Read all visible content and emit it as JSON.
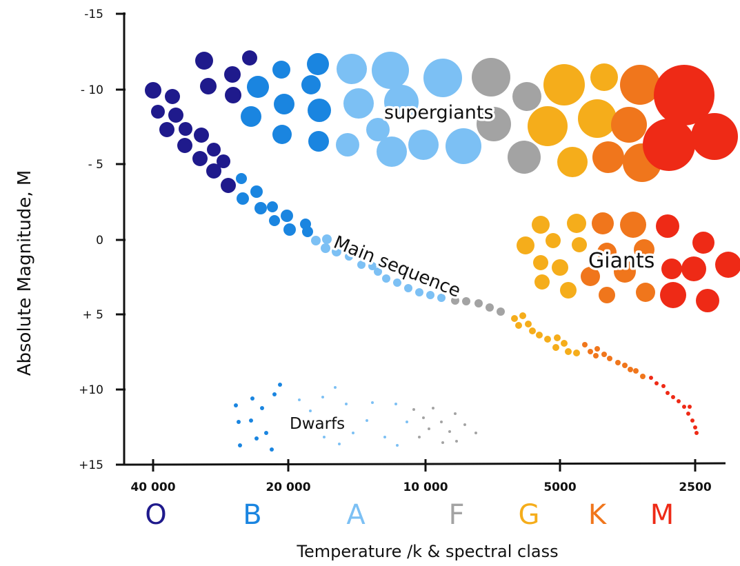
{
  "chart_data": {
    "type": "scatter",
    "title": "",
    "xlabel": "Temperature /k  & spectral class",
    "ylabel": "Absolute Magnitude, M",
    "x_ticks": [
      "40 000",
      "20 000",
      "10 000",
      "5000",
      "2500"
    ],
    "y_ticks": [
      "-15",
      "- 10",
      "- 5",
      "0",
      "+ 5",
      "+10",
      "+15"
    ],
    "y_range": [
      -15,
      15
    ],
    "y_inverted": true,
    "spectral_classes": [
      {
        "letter": "O",
        "color": "#1f1a8c"
      },
      {
        "letter": "B",
        "color": "#1a85e0"
      },
      {
        "letter": "A",
        "color": "#7cc0f4"
      },
      {
        "letter": "F",
        "color": "#a3a3a3"
      },
      {
        "letter": "G",
        "color": "#f5ad1b"
      },
      {
        "letter": "K",
        "color": "#f0761c"
      },
      {
        "letter": "M",
        "color": "#ee2a16"
      }
    ],
    "regions": [
      {
        "name": "Supergiants",
        "label": "supergiants",
        "magnitude_range": [
          -12,
          -5
        ]
      },
      {
        "name": "Giants",
        "label": "Giants",
        "magnitude_range": [
          -1,
          4
        ]
      },
      {
        "name": "Main sequence",
        "label": "Main sequence",
        "magnitude_range": [
          -10,
          13
        ]
      },
      {
        "name": "Dwarfs",
        "label": "Dwarfs",
        "magnitude_range": [
          11,
          14
        ]
      }
    ]
  }
}
